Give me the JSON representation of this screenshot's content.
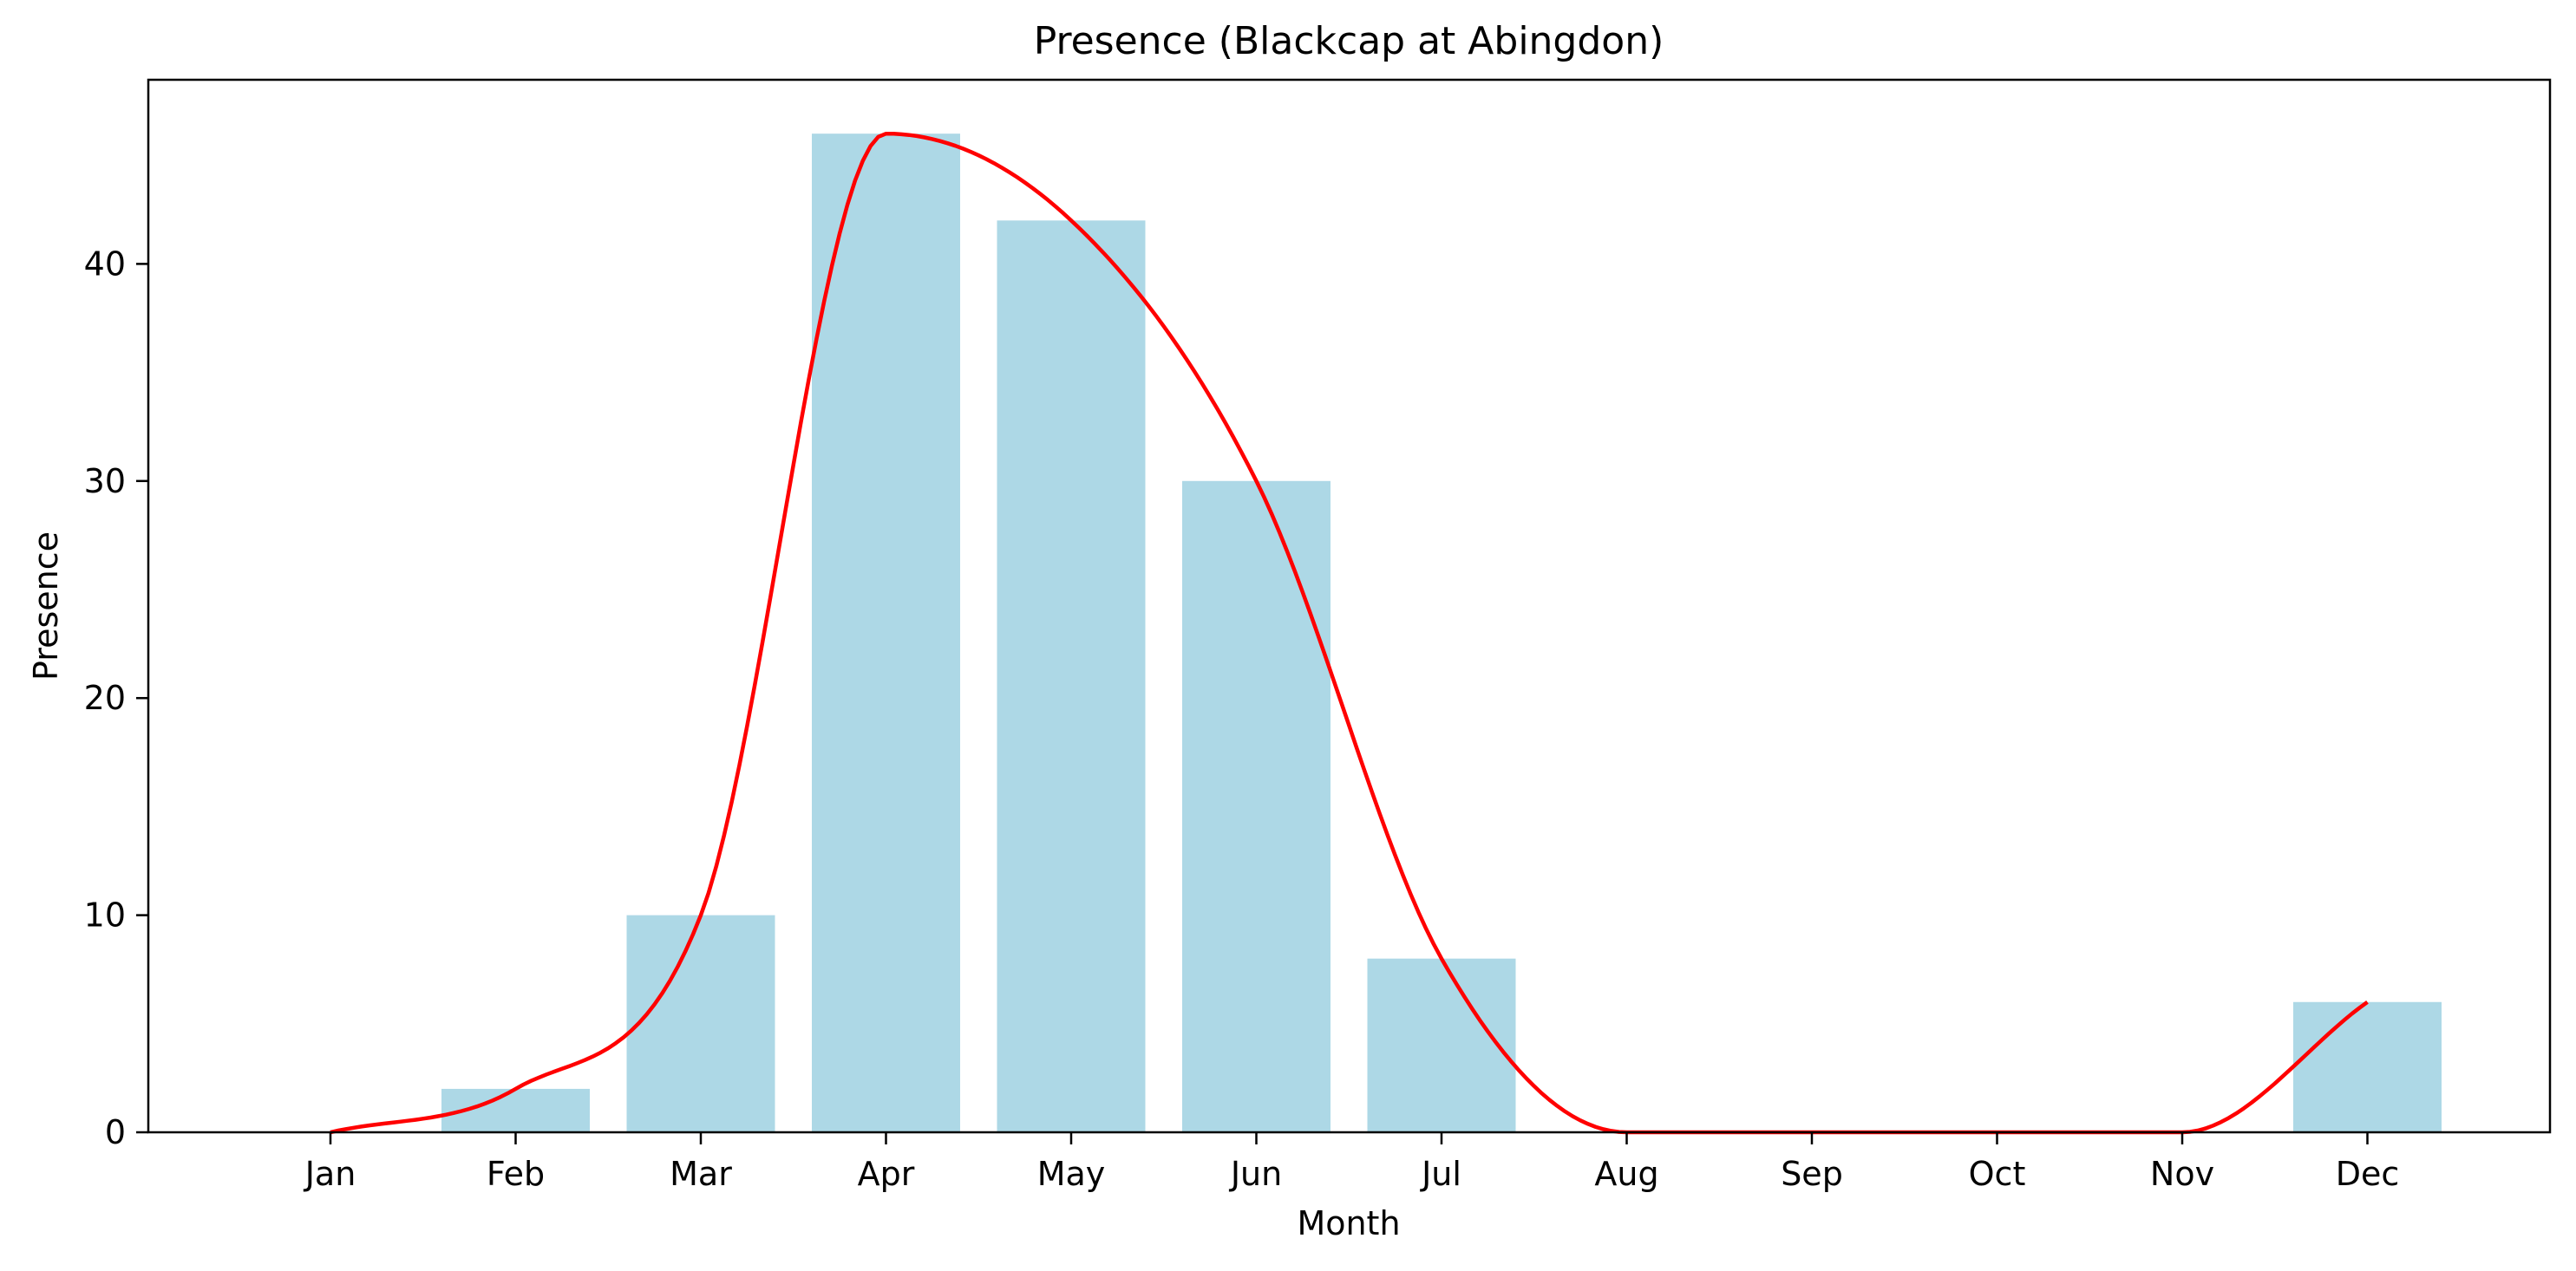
{
  "chart_data": {
    "type": "bar",
    "title": "Presence (Blackcap at Abingdon)",
    "xlabel": "Month",
    "ylabel": "Presence",
    "categories": [
      "Jan",
      "Feb",
      "Mar",
      "Apr",
      "May",
      "Jun",
      "Jul",
      "Aug",
      "Sep",
      "Oct",
      "Nov",
      "Dec"
    ],
    "series": [
      {
        "type": "bar",
        "values": [
          0,
          2,
          10,
          46,
          42,
          30,
          8,
          0,
          0,
          0,
          0,
          6
        ],
        "color": "#add8e6"
      },
      {
        "type": "line",
        "smooth": true,
        "values": [
          0,
          2,
          10,
          46,
          42,
          30,
          8,
          0,
          0,
          0,
          0,
          6
        ],
        "color": "#ff0000"
      }
    ],
    "ylim": [
      0,
      48.3
    ],
    "yticks": [
      0,
      10,
      20,
      30,
      40
    ],
    "grid": false,
    "legend": "none"
  }
}
